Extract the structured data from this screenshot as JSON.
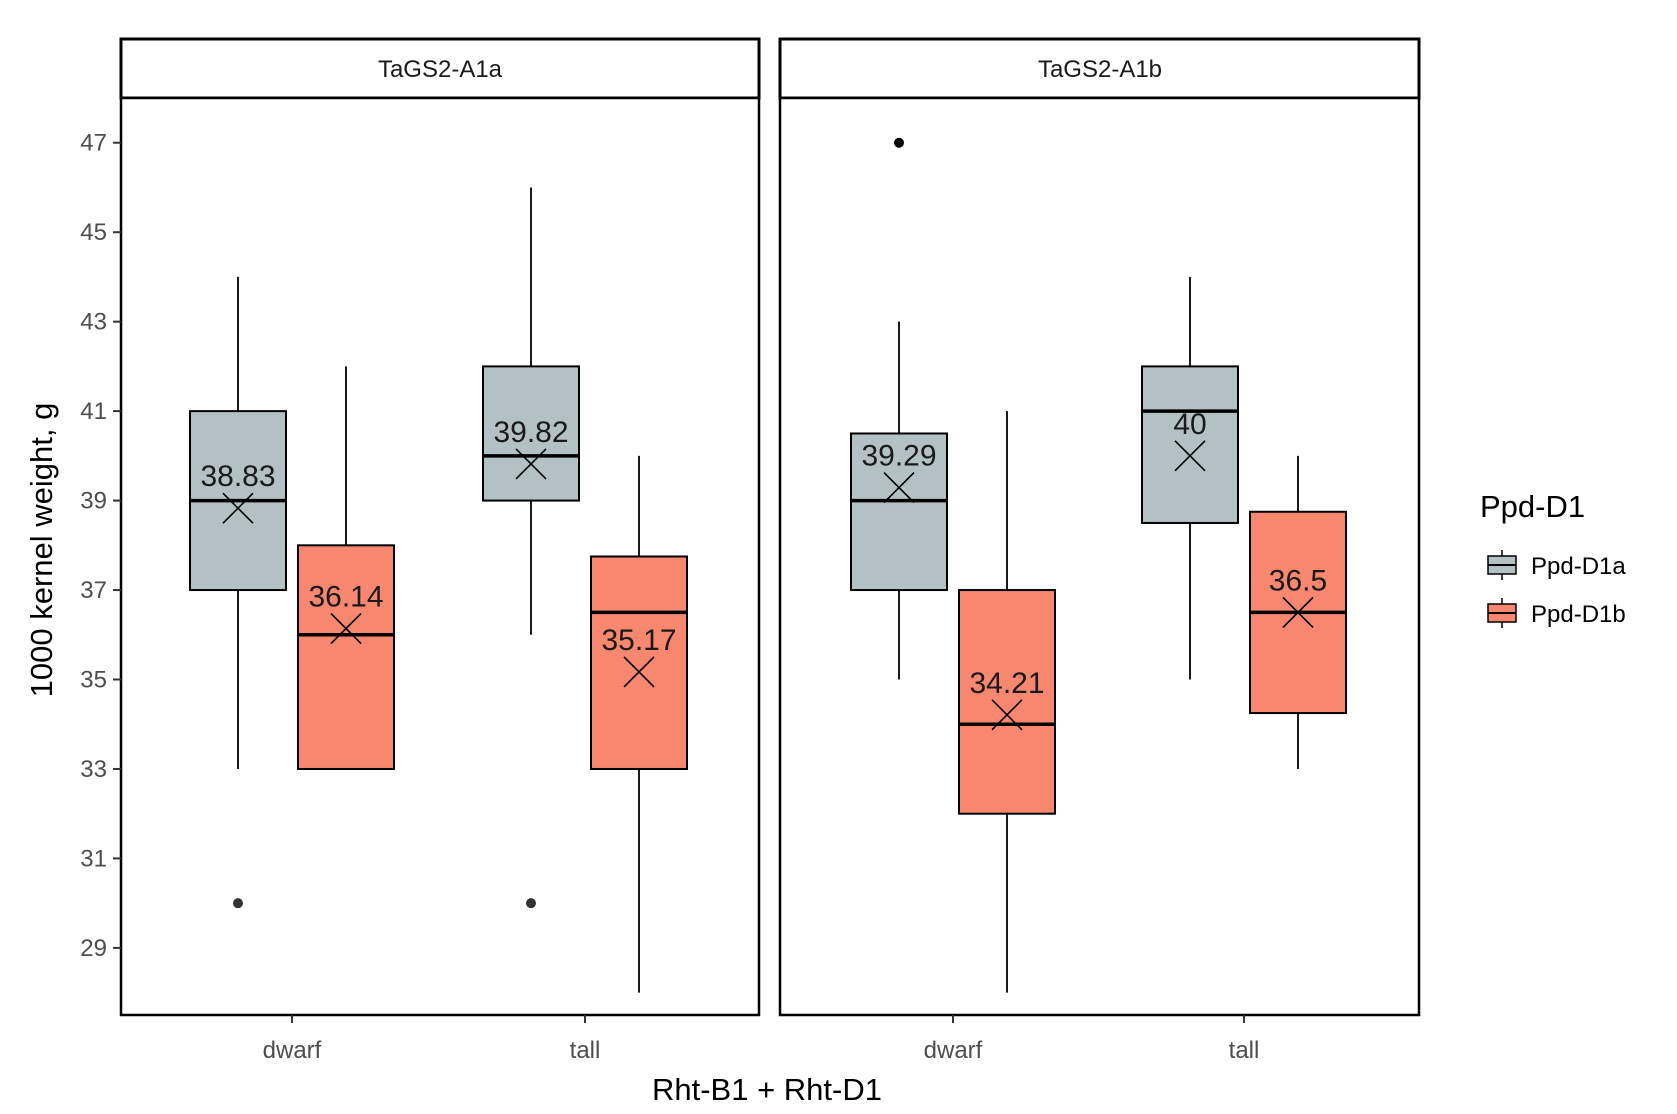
{
  "chart_data": {
    "type": "boxplot",
    "ylabel": "1000 kernel weight, g",
    "xlabel": "Rht-B1 + Rht-D1",
    "ylim": [
      27.5,
      48.0
    ],
    "yticks": [
      29,
      31,
      33,
      35,
      37,
      39,
      41,
      43,
      45,
      47
    ],
    "categories": [
      "dwarf",
      "tall"
    ],
    "legend": {
      "title": "Ppd-D1",
      "entries": [
        {
          "name": "Ppd-D1a",
          "color": "#b4c1c4"
        },
        {
          "name": "Ppd-D1b",
          "color": "#f7876f"
        }
      ]
    },
    "facets": [
      {
        "name": "TaGS2-A1a",
        "boxes": [
          {
            "category": "dwarf",
            "series": "Ppd-D1a",
            "min": 33,
            "q1": 37,
            "median": 39,
            "q3": 41,
            "max": 44,
            "mean": 38.83,
            "mean_label": "38.83",
            "outliers": [
              30
            ]
          },
          {
            "category": "dwarf",
            "series": "Ppd-D1b",
            "min": 33,
            "q1": 33,
            "median": 36,
            "q3": 38,
            "max": 42,
            "mean": 36.14,
            "mean_label": "36.14",
            "outliers": []
          },
          {
            "category": "tall",
            "series": "Ppd-D1a",
            "min": 36,
            "q1": 39,
            "median": 40,
            "q3": 42,
            "max": 46,
            "mean": 39.82,
            "mean_label": "39.82",
            "outliers": [
              30
            ]
          },
          {
            "category": "tall",
            "series": "Ppd-D1b",
            "min": 28,
            "q1": 33,
            "median": 36.5,
            "q3": 37.75,
            "max": 40,
            "mean": 35.17,
            "mean_label": "35.17",
            "outliers": []
          }
        ]
      },
      {
        "name": "TaGS2-A1b",
        "boxes": [
          {
            "category": "dwarf",
            "series": "Ppd-D1a",
            "min": 35,
            "q1": 37,
            "median": 39,
            "q3": 40.5,
            "max": 43,
            "mean": 39.29,
            "mean_label": "39.29",
            "outliers": [
              47
            ]
          },
          {
            "category": "dwarf",
            "series": "Ppd-D1b",
            "min": 28,
            "q1": 32,
            "median": 34,
            "q3": 37,
            "max": 41,
            "mean": 34.21,
            "mean_label": "34.21",
            "outliers": []
          },
          {
            "category": "tall",
            "series": "Ppd-D1a",
            "min": 35,
            "q1": 38.5,
            "median": 41,
            "q3": 42,
            "max": 44,
            "mean": 40.0,
            "mean_label": "40",
            "outliers": []
          },
          {
            "category": "tall",
            "series": "Ppd-D1b",
            "min": 33,
            "q1": 34.25,
            "median": 36.5,
            "q3": 38.75,
            "max": 40,
            "mean": 36.5,
            "mean_label": "36.5",
            "outliers": []
          }
        ]
      }
    ]
  }
}
